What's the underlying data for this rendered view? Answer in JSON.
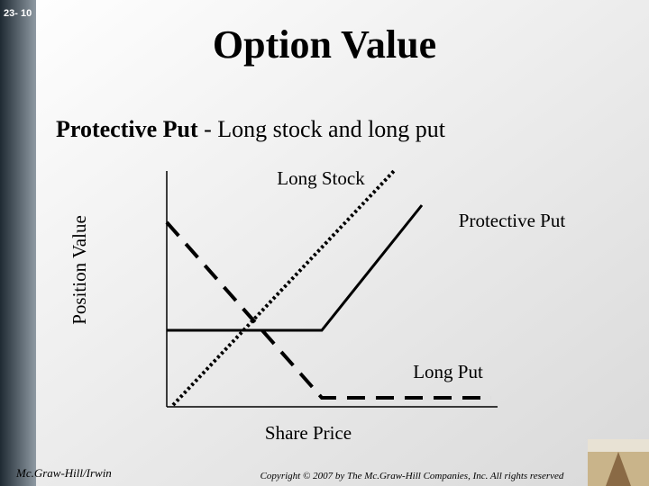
{
  "slide_number": "23- 10",
  "title": "Option Value",
  "subtitle": {
    "bold": "Protective Put",
    "rest": " - Long stock and long put"
  },
  "diagram": {
    "y_axis_label": "Position Value",
    "x_axis_label": "Share Price",
    "labels": [
      "Long Stock",
      "Protective Put",
      "Long Put"
    ]
  },
  "footer": {
    "publisher": "Mc.Graw-Hill/Irwin",
    "copyright": "Copyright © 2007 by The Mc.Graw-Hill Companies, Inc. All rights reserved"
  }
}
